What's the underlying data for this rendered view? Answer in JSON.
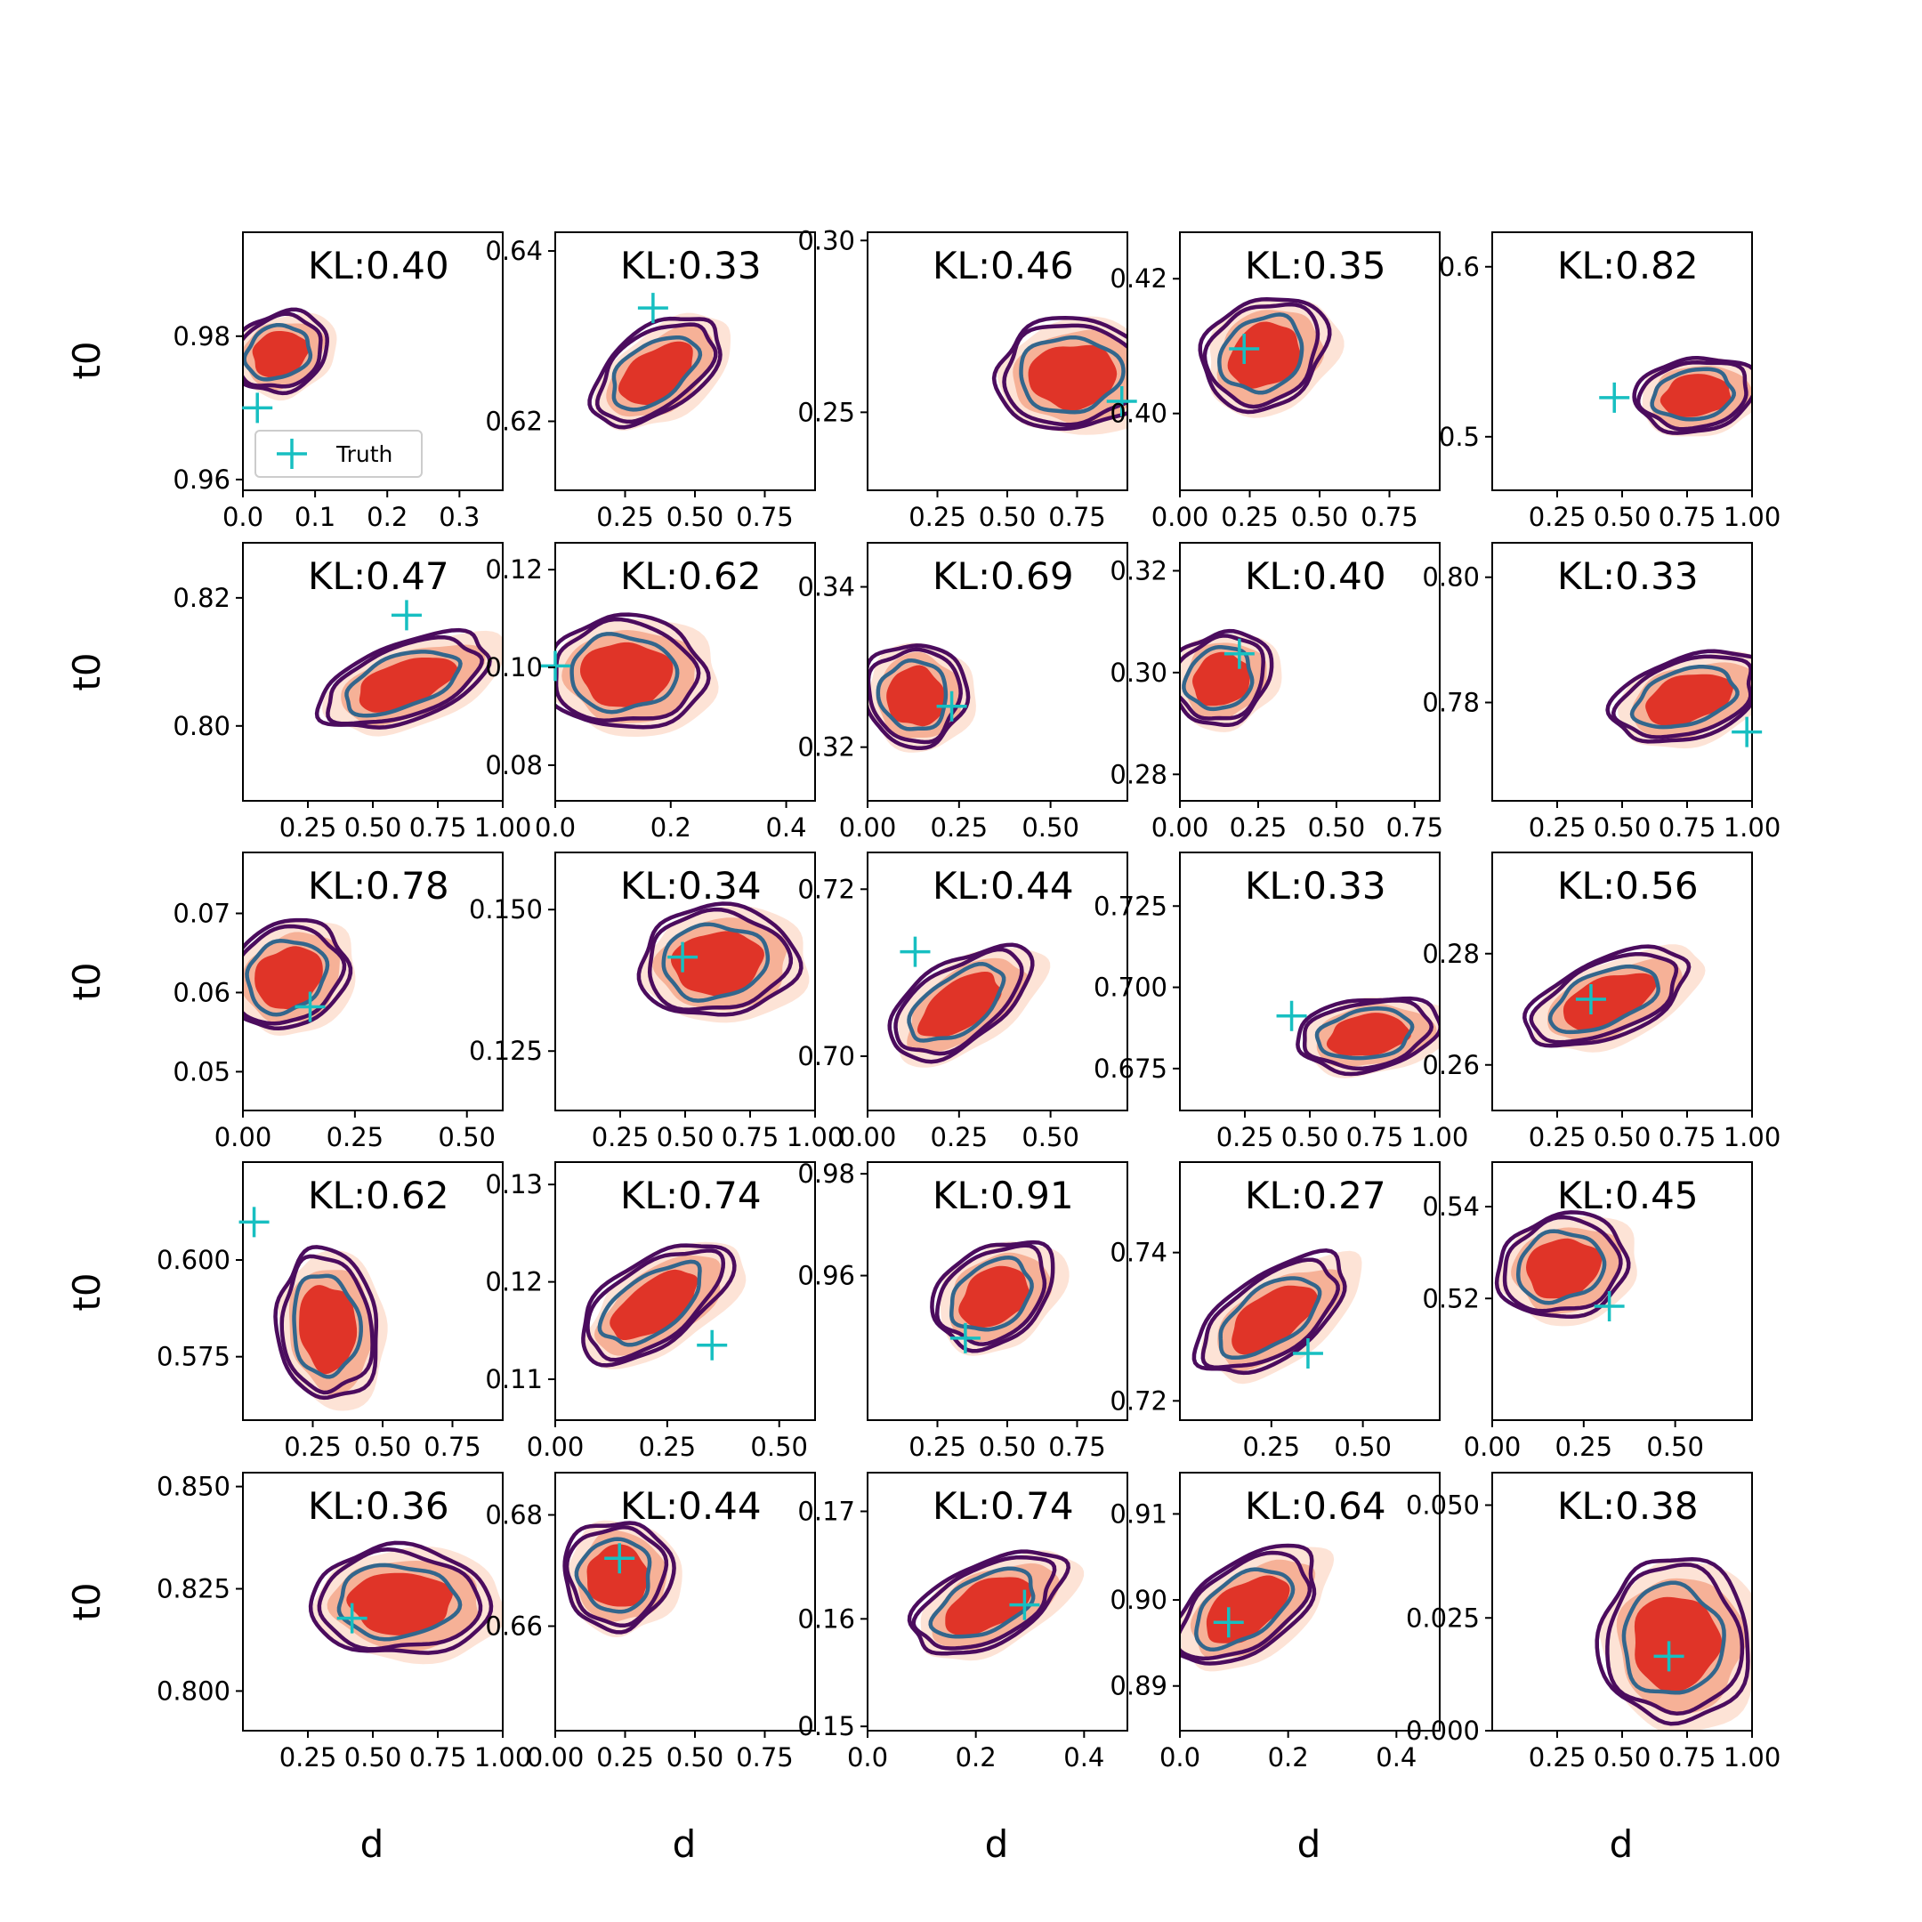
{
  "chart_data": {
    "type": "contour-grid",
    "rows": 5,
    "cols": 5,
    "xlabel": "d",
    "ylabel": "t0",
    "legend": {
      "label": "Truth",
      "placement": "lower-left of first panel"
    },
    "colors": {
      "fill_outer": "#fde3d6",
      "fill_mid": "#f6b197",
      "fill_inner": "#e03428",
      "contour_outer": "#4b0c5e",
      "contour_inner": "#33668c",
      "truth_marker": "#17bfc1"
    },
    "panels": [
      {
        "kl": "KL:0.40",
        "xlim": [
          0.0,
          0.36
        ],
        "ylim": [
          0.9585,
          0.9945
        ],
        "xticks": [
          0.0,
          0.1,
          0.2,
          0.3
        ],
        "xtick_labels": [
          "0.0",
          "0.1",
          "0.2",
          "0.3"
        ],
        "yticks": [
          0.96,
          0.98
        ],
        "ytick_labels": [
          "0.96",
          "0.98"
        ],
        "truth": [
          0.02,
          0.97
        ],
        "center": [
          0.05,
          0.9775
        ],
        "spread": [
          0.05,
          0.004
        ],
        "tilt": -0.35
      },
      {
        "kl": "KL:0.33",
        "xlim": [
          0.0,
          0.93
        ],
        "ylim": [
          0.6119,
          0.6422
        ],
        "xticks": [
          0.25,
          0.5,
          0.75
        ],
        "xtick_labels": [
          "0.25",
          "0.50",
          "0.75"
        ],
        "yticks": [
          0.62,
          0.64
        ],
        "ytick_labels": [
          "0.62",
          "0.64"
        ],
        "truth": [
          0.35,
          0.6333
        ],
        "center": [
          0.36,
          0.6255
        ],
        "spread": [
          0.19,
          0.0036
        ],
        "tilt": -0.62
      },
      {
        "kl": "KL:0.46",
        "xlim": [
          0.0,
          0.93
        ],
        "ylim": [
          0.2273,
          0.3024
        ],
        "xticks": [
          0.25,
          0.5,
          0.75,
          1.0
        ],
        "xtick_labels": [
          "0.25",
          "0.50",
          "0.75",
          "1.00"
        ],
        "yticks": [
          0.25,
          0.3
        ],
        "ytick_labels": [
          "0.25",
          "0.30"
        ],
        "truth": [
          0.91,
          0.2532
        ],
        "center": [
          0.73,
          0.2605
        ],
        "spread": [
          0.2,
          0.012
        ],
        "tilt": -0.05
      },
      {
        "kl": "KL:0.35",
        "xlim": [
          0.0,
          0.93
        ],
        "ylim": [
          0.3886,
          0.4269
        ],
        "xticks": [
          0.0,
          0.25,
          0.5,
          0.75
        ],
        "xtick_labels": [
          "0.00",
          "0.25",
          "0.50",
          "0.75"
        ],
        "yticks": [
          0.4,
          0.42
        ],
        "ytick_labels": [
          "0.40",
          "0.42"
        ],
        "truth": [
          0.23,
          0.4096
        ],
        "center": [
          0.3,
          0.4085
        ],
        "spread": [
          0.17,
          0.0058
        ],
        "tilt": -0.55
      },
      {
        "kl": "KL:0.82",
        "xlim": [
          0.0,
          1.0
        ],
        "ylim": [
          0.4685,
          0.6203
        ],
        "xticks": [
          0.25,
          0.5,
          0.75,
          1.0
        ],
        "xtick_labels": [
          "0.25",
          "0.50",
          "0.75",
          "1.00"
        ],
        "yticks": [
          0.5,
          0.6
        ],
        "ytick_labels": [
          "0.5",
          "0.6"
        ],
        "truth": [
          0.47,
          0.523
        ],
        "center": [
          0.78,
          0.524
        ],
        "spread": [
          0.17,
          0.016
        ],
        "tilt": -0.15
      },
      {
        "kl": "KL:0.47",
        "xlim": [
          0.0,
          1.0
        ],
        "ylim": [
          0.7883,
          0.8286
        ],
        "xticks": [
          0.25,
          0.5,
          0.75,
          1.0
        ],
        "xtick_labels": [
          "0.25",
          "0.50",
          "0.75",
          "1.00"
        ],
        "yticks": [
          0.8,
          0.82
        ],
        "ytick_labels": [
          "0.80",
          "0.82"
        ],
        "truth": [
          0.63,
          0.8173
        ],
        "center": [
          0.62,
          0.8065
        ],
        "spread": [
          0.25,
          0.0045
        ],
        "tilt": -0.35
      },
      {
        "kl": "KL:0.62",
        "xlim": [
          0.0,
          0.45
        ],
        "ylim": [
          0.0727,
          0.1255
        ],
        "xticks": [
          0.0,
          0.2,
          0.4
        ],
        "xtick_labels": [
          "0.0",
          "0.2",
          "0.4"
        ],
        "yticks": [
          0.08,
          0.1,
          0.12
        ],
        "ytick_labels": [
          "0.08",
          "0.10",
          "0.12"
        ],
        "truth": [
          0.0,
          0.1003
        ],
        "center": [
          0.12,
          0.0985
        ],
        "spread": [
          0.1,
          0.0085
        ],
        "tilt": 0.0
      },
      {
        "kl": "KL:0.69",
        "xlim": [
          0.0,
          0.71
        ],
        "ylim": [
          0.3133,
          0.3455
        ],
        "xticks": [
          0.0,
          0.25,
          0.5
        ],
        "xtick_labels": [
          "0.00",
          "0.25",
          "0.50"
        ],
        "yticks": [
          0.32,
          0.34
        ],
        "ytick_labels": [
          "0.32",
          "0.34"
        ],
        "truth": [
          0.23,
          0.3251
        ],
        "center": [
          0.13,
          0.3262
        ],
        "spread": [
          0.1,
          0.0048
        ],
        "tilt": -0.65
      },
      {
        "kl": "KL:0.40",
        "xlim": [
          0.0,
          0.83
        ],
        "ylim": [
          0.2748,
          0.3255
        ],
        "xticks": [
          0.0,
          0.25,
          0.5,
          0.75
        ],
        "xtick_labels": [
          "0.00",
          "0.25",
          "0.50",
          "0.75"
        ],
        "yticks": [
          0.28,
          0.3,
          0.32
        ],
        "ytick_labels": [
          "0.28",
          "0.30",
          "0.32"
        ],
        "truth": [
          0.19,
          0.3037
        ],
        "center": [
          0.13,
          0.2985
        ],
        "spread": [
          0.12,
          0.0065
        ],
        "tilt": -0.5
      },
      {
        "kl": "KL:0.33",
        "xlim": [
          0.0,
          1.0
        ],
        "ylim": [
          0.7643,
          0.8055
        ],
        "xticks": [
          0.25,
          0.5,
          0.75,
          1.0
        ],
        "xtick_labels": [
          "0.25",
          "0.50",
          "0.75",
          "1.00"
        ],
        "yticks": [
          0.78,
          0.8
        ],
        "ytick_labels": [
          "0.78",
          "0.80"
        ],
        "truth": [
          0.98,
          0.7753
        ],
        "center": [
          0.75,
          0.7805
        ],
        "spread": [
          0.22,
          0.0048
        ],
        "tilt": -0.3
      },
      {
        "kl": "KL:0.78",
        "xlim": [
          0.0,
          0.58
        ],
        "ylim": [
          0.0451,
          0.0777
        ],
        "xticks": [
          0.0,
          0.25,
          0.5
        ],
        "xtick_labels": [
          "0.00",
          "0.25",
          "0.50"
        ],
        "yticks": [
          0.05,
          0.06,
          0.07
        ],
        "ytick_labels": [
          "0.05",
          "0.06",
          "0.07"
        ],
        "truth": [
          0.15,
          0.0582
        ],
        "center": [
          0.1,
          0.0618
        ],
        "spread": [
          0.1,
          0.0048
        ],
        "tilt": -0.55
      },
      {
        "kl": "KL:0.34",
        "xlim": [
          0.0,
          1.0
        ],
        "ylim": [
          0.1145,
          0.1601
        ],
        "xticks": [
          0.25,
          0.5,
          0.75,
          1.0
        ],
        "xtick_labels": [
          "0.25",
          "0.50",
          "0.75",
          "1.00"
        ],
        "yticks": [
          0.125,
          0.15
        ],
        "ytick_labels": [
          "0.125",
          "0.150"
        ],
        "truth": [
          0.49,
          0.1416
        ],
        "center": [
          0.62,
          0.1405
        ],
        "spread": [
          0.22,
          0.0072
        ],
        "tilt": -0.1
      },
      {
        "kl": "KL:0.44",
        "xlim": [
          0.0,
          0.71
        ],
        "ylim": [
          0.6935,
          0.7244
        ],
        "xticks": [
          0.0,
          0.25,
          0.5
        ],
        "xtick_labels": [
          "0.00",
          "0.25",
          "0.50"
        ],
        "yticks": [
          0.7,
          0.72
        ],
        "ytick_labels": [
          "0.70",
          "0.72"
        ],
        "truth": [
          0.13,
          0.7125
        ],
        "center": [
          0.25,
          0.706
        ],
        "spread": [
          0.16,
          0.0036
        ],
        "tilt": -0.6
      },
      {
        "kl": "KL:0.33",
        "xlim": [
          0.0,
          1.0
        ],
        "ylim": [
          0.6621,
          0.7415
        ],
        "xticks": [
          0.25,
          0.5,
          0.75,
          1.0
        ],
        "xtick_labels": [
          "0.25",
          "0.50",
          "0.75",
          "1.00"
        ],
        "yticks": [
          0.675,
          0.7,
          0.725
        ],
        "ytick_labels": [
          "0.675",
          "0.700",
          "0.725"
        ],
        "truth": [
          0.43,
          0.6912
        ],
        "center": [
          0.72,
          0.6852
        ],
        "spread": [
          0.2,
          0.0082
        ],
        "tilt": -0.15
      },
      {
        "kl": "KL:0.56",
        "xlim": [
          0.0,
          1.0
        ],
        "ylim": [
          0.2518,
          0.2982
        ],
        "xticks": [
          0.25,
          0.5,
          0.75,
          1.0
        ],
        "xtick_labels": [
          "0.25",
          "0.50",
          "0.75",
          "1.00"
        ],
        "yticks": [
          0.26,
          0.28
        ],
        "ytick_labels": [
          "0.26",
          "0.28"
        ],
        "truth": [
          0.38,
          0.2718
        ],
        "center": [
          0.44,
          0.2715
        ],
        "spread": [
          0.24,
          0.0052
        ],
        "tilt": -0.4
      },
      {
        "kl": "KL:0.62",
        "xlim": [
          0.0,
          0.93
        ],
        "ylim": [
          0.5586,
          0.6253
        ],
        "xticks": [
          0.25,
          0.5,
          0.75
        ],
        "xtick_labels": [
          "0.25",
          "0.50",
          "0.75"
        ],
        "yticks": [
          0.575,
          0.6
        ],
        "ytick_labels": [
          "0.575",
          "0.600"
        ],
        "truth": [
          0.04,
          0.6098
        ],
        "center": [
          0.3,
          0.5825
        ],
        "spread": [
          0.13,
          0.0145
        ],
        "tilt": -0.1
      },
      {
        "kl": "KL:0.74",
        "xlim": [
          0.0,
          0.58
        ],
        "ylim": [
          0.1058,
          0.1323
        ],
        "xticks": [
          0.0,
          0.25,
          0.5
        ],
        "xtick_labels": [
          "0.00",
          "0.25",
          "0.50"
        ],
        "yticks": [
          0.11,
          0.12,
          0.13
        ],
        "ytick_labels": [
          "0.11",
          "0.12",
          "0.13"
        ],
        "truth": [
          0.35,
          0.1135
        ],
        "center": [
          0.22,
          0.1175
        ],
        "spread": [
          0.14,
          0.0032
        ],
        "tilt": -0.6
      },
      {
        "kl": "KL:0.91",
        "xlim": [
          0.0,
          0.93
        ],
        "ylim": [
          0.9316,
          0.9823
        ],
        "xticks": [
          0.25,
          0.5,
          0.75
        ],
        "xtick_labels": [
          "0.25",
          "0.50",
          "0.75"
        ],
        "yticks": [
          0.96,
          0.98
        ],
        "ytick_labels": [
          "0.96",
          "0.98"
        ],
        "truth": [
          0.35,
          0.9477
        ],
        "center": [
          0.45,
          0.9557
        ],
        "spread": [
          0.17,
          0.0068
        ],
        "tilt": -0.6
      },
      {
        "kl": "KL:0.27",
        "xlim": [
          0.0,
          0.71
        ],
        "ylim": [
          0.7174,
          0.7522
        ],
        "xticks": [
          0.25,
          0.5
        ],
        "xtick_labels": [
          "0.25",
          "0.50"
        ],
        "yticks": [
          0.72,
          0.74
        ],
        "ytick_labels": [
          "0.72",
          "0.74"
        ],
        "truth": [
          0.35,
          0.7264
        ],
        "center": [
          0.25,
          0.731
        ],
        "spread": [
          0.17,
          0.0042
        ],
        "tilt": -0.6
      },
      {
        "kl": "KL:0.45",
        "xlim": [
          0.0,
          0.71
        ],
        "ylim": [
          0.4935,
          0.5497
        ],
        "xticks": [
          0.0,
          0.25,
          0.5
        ],
        "xtick_labels": [
          "0.00",
          "0.25",
          "0.50"
        ],
        "yticks": [
          0.52,
          0.54
        ],
        "ytick_labels": [
          "0.52",
          "0.54"
        ],
        "truth": [
          0.32,
          0.5183
        ],
        "center": [
          0.19,
          0.5265
        ],
        "spread": [
          0.13,
          0.0082
        ],
        "tilt": -0.25
      },
      {
        "kl": "KL:0.36",
        "xlim": [
          0.0,
          1.0
        ],
        "ylim": [
          0.7903,
          0.8534
        ],
        "xticks": [
          0.25,
          0.5,
          0.75,
          1.0
        ],
        "xtick_labels": [
          "0.25",
          "0.50",
          "0.75",
          "1.00"
        ],
        "yticks": [
          0.8,
          0.825,
          0.85
        ],
        "ytick_labels": [
          "0.800",
          "0.825",
          "0.850"
        ],
        "truth": [
          0.42,
          0.8178
        ],
        "center": [
          0.6,
          0.8215
        ],
        "spread": [
          0.25,
          0.0098
        ],
        "tilt": 0.0
      },
      {
        "kl": "KL:0.44",
        "xlim": [
          0.0,
          0.93
        ],
        "ylim": [
          0.6412,
          0.6876
        ],
        "xticks": [
          0.0,
          0.25,
          0.5,
          0.75
        ],
        "xtick_labels": [
          "0.00",
          "0.25",
          "0.50",
          "0.75"
        ],
        "yticks": [
          0.66,
          0.68
        ],
        "ytick_labels": [
          "0.66",
          "0.68"
        ],
        "truth": [
          0.23,
          0.6722
        ],
        "center": [
          0.22,
          0.6688
        ],
        "spread": [
          0.14,
          0.0072
        ],
        "tilt": -0.45
      },
      {
        "kl": "KL:0.74",
        "xlim": [
          0.0,
          0.48
        ],
        "ylim": [
          0.1496,
          0.1736
        ],
        "xticks": [
          0.0,
          0.2,
          0.4
        ],
        "xtick_labels": [
          "0.0",
          "0.2",
          "0.4"
        ],
        "yticks": [
          0.15,
          0.16,
          0.17
        ],
        "ytick_labels": [
          "0.15",
          "0.16",
          "0.17"
        ],
        "truth": [
          0.29,
          0.1613
        ],
        "center": [
          0.22,
          0.1612
        ],
        "spread": [
          0.11,
          0.0028
        ],
        "tilt": -0.45
      },
      {
        "kl": "KL:0.64",
        "xlim": [
          0.0,
          0.48
        ],
        "ylim": [
          0.8848,
          0.9148
        ],
        "xticks": [
          0.0,
          0.2,
          0.4
        ],
        "xtick_labels": [
          "0.0",
          "0.2",
          "0.4"
        ],
        "yticks": [
          0.89,
          0.9,
          0.91
        ],
        "ytick_labels": [
          "0.89",
          "0.90",
          "0.91"
        ],
        "truth": [
          0.09,
          0.8974
        ],
        "center": [
          0.12,
          0.8988
        ],
        "spread": [
          0.11,
          0.0038
        ],
        "tilt": -0.6
      },
      {
        "kl": "KL:0.38",
        "xlim": [
          0.0,
          1.0
        ],
        "ylim": [
          0.0,
          0.0572
        ],
        "xticks": [
          0.25,
          0.5,
          0.75,
          1.0
        ],
        "xtick_labels": [
          "0.25",
          "0.50",
          "0.75",
          "1.00"
        ],
        "yticks": [
          0.0,
          0.025,
          0.05
        ],
        "ytick_labels": [
          "0.000",
          "0.025",
          "0.050"
        ],
        "truth": [
          0.68,
          0.0165
        ],
        "center": [
          0.7,
          0.0195
        ],
        "spread": [
          0.21,
          0.0135
        ],
        "tilt": 0.0
      }
    ]
  }
}
